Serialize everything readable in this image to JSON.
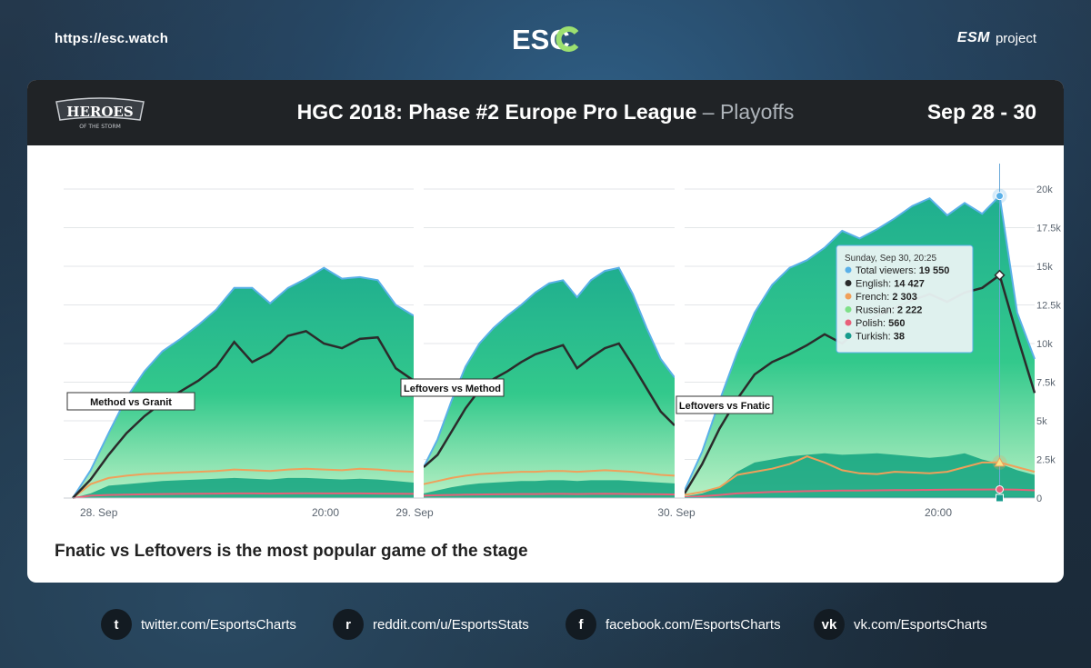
{
  "header": {
    "site_url": "https://esc.watch",
    "brand_logo": "ESC",
    "partner_logo": "ESM",
    "partner_suffix": "project"
  },
  "card": {
    "game_logo_text": "HEROES",
    "game_logo_sub": "OF THE STORM",
    "title_main": "HGC 2018: Phase #2 Europe Pro League",
    "title_sep": " – ",
    "title_sub": "Playoffs",
    "dates": "Sep 28 - 30",
    "caption": "Fnatic vs Leftovers is the most popular game of the stage"
  },
  "chart_data": {
    "type": "area",
    "title": "",
    "xlabel": "",
    "ylabel": "",
    "ylim": [
      0,
      20000
    ],
    "y_ticks": [
      {
        "value": 0,
        "label": "0"
      },
      {
        "value": 2500,
        "label": "2.5k"
      },
      {
        "value": 5000,
        "label": "5k"
      },
      {
        "value": 7500,
        "label": "7.5k"
      },
      {
        "value": 10000,
        "label": "10k"
      },
      {
        "value": 12500,
        "label": "12.5k"
      },
      {
        "value": 15000,
        "label": "15k"
      },
      {
        "value": 17500,
        "label": "17.5k"
      },
      {
        "value": 20000,
        "label": "20k"
      }
    ],
    "x_ticks": [
      "28. Sep",
      "20:00",
      "29. Sep",
      "30. Sep",
      "20:00"
    ],
    "segments": [
      {
        "label": "Method vs Granit",
        "total": [
          0,
          1800,
          4200,
          6500,
          8200,
          9500,
          10300,
          11200,
          12200,
          13600,
          13600,
          12600,
          13600,
          14200,
          14900,
          14200,
          14300,
          14100,
          12500,
          11800
        ],
        "english": [
          0,
          1200,
          2800,
          4200,
          5300,
          6200,
          6900,
          7600,
          8500,
          10100,
          8800,
          9400,
          10500,
          10800,
          10000,
          9700,
          10300,
          10400,
          8400,
          7600
        ],
        "french": [
          0,
          900,
          1300,
          1450,
          1550,
          1600,
          1650,
          1700,
          1750,
          1850,
          1800,
          1750,
          1850,
          1900,
          1850,
          1800,
          1900,
          1850,
          1750,
          1700
        ],
        "russian": [
          0,
          300,
          800,
          900,
          1000,
          1100,
          1150,
          1200,
          1250,
          1300,
          1250,
          1200,
          1300,
          1300,
          1250,
          1200,
          1250,
          1200,
          1100,
          1000
        ],
        "polish": [
          0,
          150,
          200,
          220,
          240,
          260,
          270,
          280,
          290,
          300,
          300,
          290,
          300,
          310,
          300,
          300,
          300,
          290,
          280,
          270
        ]
      },
      {
        "label": "Leftovers vs Method",
        "total": [
          2000,
          3800,
          6300,
          8500,
          10000,
          11000,
          11800,
          12500,
          13300,
          13900,
          14100,
          13000,
          14100,
          14700,
          14900,
          13200,
          11000,
          9000,
          7800
        ],
        "english": [
          2000,
          2800,
          4300,
          5800,
          7000,
          7700,
          8200,
          8800,
          9300,
          9600,
          9900,
          8400,
          9100,
          9700,
          10000,
          8600,
          7100,
          5600,
          4700
        ],
        "french": [
          900,
          1100,
          1300,
          1450,
          1550,
          1600,
          1650,
          1700,
          1700,
          1750,
          1750,
          1700,
          1750,
          1800,
          1750,
          1700,
          1600,
          1500,
          1450
        ],
        "russian": [
          300,
          500,
          700,
          850,
          950,
          1000,
          1050,
          1100,
          1100,
          1150,
          1150,
          1100,
          1150,
          1150,
          1150,
          1100,
          1050,
          1000,
          950
        ],
        "polish": [
          150,
          180,
          200,
          220,
          230,
          240,
          250,
          260,
          260,
          270,
          270,
          260,
          270,
          280,
          270,
          260,
          250,
          240,
          230
        ]
      },
      {
        "label": "Leftovers vs Fnatic",
        "total": [
          500,
          3000,
          6300,
          9400,
          12000,
          13800,
          14900,
          15400,
          16200,
          17300,
          16800,
          17400,
          18100,
          18900,
          19400,
          18300,
          19100,
          18400,
          19550,
          12000,
          9000
        ],
        "english": [
          300,
          2200,
          4500,
          6400,
          8000,
          8800,
          9300,
          9900,
          10600,
          10000,
          11000,
          11800,
          12300,
          12800,
          13200,
          12700,
          13300,
          13600,
          14427,
          10500,
          6800
        ],
        "french": [
          200,
          400,
          700,
          1500,
          1700,
          1900,
          2200,
          2700,
          2300,
          1800,
          1600,
          1550,
          1700,
          1650,
          1600,
          1700,
          2000,
          2300,
          2303,
          2000,
          1700
        ],
        "russian": [
          100,
          300,
          700,
          1700,
          2300,
          2500,
          2700,
          2800,
          2900,
          2800,
          2850,
          2900,
          2800,
          2700,
          2600,
          2700,
          2900,
          2500,
          2222,
          1800,
          1500
        ],
        "polish": [
          50,
          120,
          200,
          300,
          350,
          400,
          420,
          450,
          470,
          480,
          490,
          500,
          510,
          520,
          530,
          540,
          550,
          555,
          560,
          540,
          500
        ],
        "turkish": [
          10,
          15,
          20,
          25,
          28,
          30,
          32,
          33,
          34,
          35,
          35,
          36,
          36,
          37,
          37,
          37,
          38,
          38,
          38,
          36,
          35
        ]
      }
    ],
    "series": [
      {
        "name": "Total viewers",
        "color": "#5ab0e8"
      },
      {
        "name": "English",
        "color": "#2b2b2b"
      },
      {
        "name": "French",
        "color": "#f0a05a"
      },
      {
        "name": "Russian",
        "color": "#7ee088"
      },
      {
        "name": "Polish",
        "color": "#e8607a"
      },
      {
        "name": "Turkish",
        "color": "#169c8c"
      }
    ],
    "tooltip": {
      "date": "Sunday, Sep 30, 20:25",
      "rows": [
        {
          "label": "Total viewers",
          "value": "19 550",
          "color": "#5ab0e8"
        },
        {
          "label": "English",
          "value": "14 427",
          "color": "#2b2b2b"
        },
        {
          "label": "French",
          "value": "2 303",
          "color": "#f0a05a"
        },
        {
          "label": "Russian",
          "value": "2 222",
          "color": "#7ee088"
        },
        {
          "label": "Polish",
          "value": "560",
          "color": "#e8607a"
        },
        {
          "label": "Turkish",
          "value": "38",
          "color": "#169c8c"
        }
      ]
    }
  },
  "footer": {
    "links": [
      {
        "icon": "twitter-icon",
        "glyph": "t",
        "text": "twitter.com/EsportsCharts"
      },
      {
        "icon": "reddit-icon",
        "glyph": "r",
        "text": "reddit.com/u/EsportsStats"
      },
      {
        "icon": "facebook-icon",
        "glyph": "f",
        "text": "facebook.com/EsportsCharts"
      },
      {
        "icon": "vk-icon",
        "glyph": "vk",
        "text": "vk.com/EsportsCharts"
      }
    ]
  }
}
